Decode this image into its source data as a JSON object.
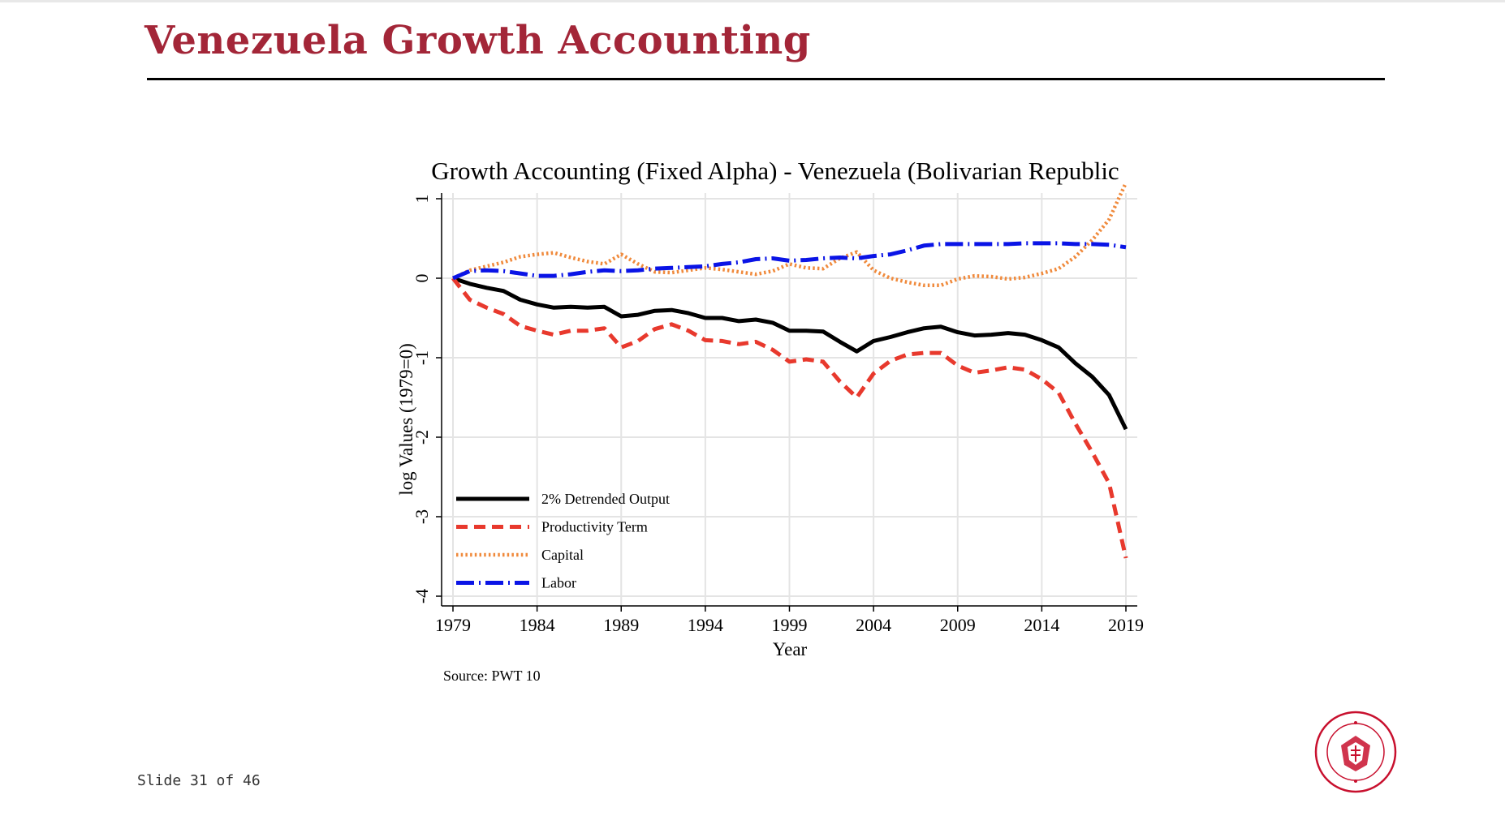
{
  "slide": {
    "title": "Venezuela Growth Accounting",
    "footer": "Slide 31 of 46",
    "logo_text": "CARNEGIE MELLON UNIVERSITY PITTSBURGH PENNSYLVANIA 1900",
    "accent_color": "#a32638"
  },
  "chart_data": {
    "type": "line",
    "title": "Growth Accounting (Fixed Alpha) - Venezuela (Bolivarian Republic",
    "xlabel": "Year",
    "ylabel": "log Values (1979=0)",
    "source": "Source: PWT 10",
    "xlim": [
      1979,
      2019
    ],
    "ylim": [
      -4,
      1
    ],
    "xticks": [
      1979,
      1984,
      1989,
      1994,
      1999,
      2004,
      2009,
      2014,
      2019
    ],
    "yticks": [
      -4,
      -3,
      -2,
      -1,
      0,
      1
    ],
    "grid": true,
    "legend_position": "bottom-left",
    "x": [
      1979,
      1980,
      1981,
      1982,
      1983,
      1984,
      1985,
      1986,
      1987,
      1988,
      1989,
      1990,
      1991,
      1992,
      1993,
      1994,
      1995,
      1996,
      1997,
      1998,
      1999,
      2000,
      2001,
      2002,
      2003,
      2004,
      2005,
      2006,
      2007,
      2008,
      2009,
      2010,
      2011,
      2012,
      2013,
      2014,
      2015,
      2016,
      2017,
      2018,
      2019
    ],
    "series": [
      {
        "name": "2% Detrended Output",
        "color": "#000000",
        "style": "solid",
        "values": [
          0,
          -0.07,
          -0.12,
          -0.16,
          -0.27,
          -0.33,
          -0.37,
          -0.36,
          -0.37,
          -0.36,
          -0.48,
          -0.46,
          -0.41,
          -0.4,
          -0.44,
          -0.5,
          -0.5,
          -0.54,
          -0.52,
          -0.56,
          -0.66,
          -0.66,
          -0.67,
          -0.8,
          -0.92,
          -0.79,
          -0.74,
          -0.68,
          -0.63,
          -0.61,
          -0.68,
          -0.72,
          -0.71,
          -0.69,
          -0.71,
          -0.78,
          -0.87,
          -1.07,
          -1.24,
          -1.47,
          -1.9
        ]
      },
      {
        "name": "Productivity Term",
        "color": "#e8392d",
        "style": "dash",
        "values": [
          0,
          -0.27,
          -0.37,
          -0.45,
          -0.6,
          -0.66,
          -0.71,
          -0.66,
          -0.66,
          -0.63,
          -0.87,
          -0.79,
          -0.64,
          -0.58,
          -0.66,
          -0.78,
          -0.79,
          -0.83,
          -0.8,
          -0.9,
          -1.05,
          -1.02,
          -1.05,
          -1.3,
          -1.5,
          -1.2,
          -1.04,
          -0.96,
          -0.94,
          -0.94,
          -1.1,
          -1.19,
          -1.16,
          -1.12,
          -1.15,
          -1.27,
          -1.44,
          -1.83,
          -2.19,
          -2.58,
          -3.52
        ]
      },
      {
        "name": "Capital",
        "color": "#f08a3c",
        "style": "dot",
        "values": [
          0,
          0.1,
          0.15,
          0.2,
          0.27,
          0.3,
          0.32,
          0.26,
          0.21,
          0.18,
          0.3,
          0.18,
          0.08,
          0.07,
          0.1,
          0.13,
          0.11,
          0.08,
          0.05,
          0.09,
          0.18,
          0.13,
          0.12,
          0.25,
          0.33,
          0.1,
          0.0,
          -0.05,
          -0.09,
          -0.09,
          -0.01,
          0.03,
          0.02,
          -0.01,
          0.01,
          0.06,
          0.12,
          0.27,
          0.48,
          0.74,
          1.2
        ]
      },
      {
        "name": "Labor",
        "color": "#0a14e6",
        "style": "dashdot",
        "values": [
          0,
          0.09,
          0.1,
          0.09,
          0.06,
          0.03,
          0.03,
          0.05,
          0.08,
          0.1,
          0.09,
          0.1,
          0.12,
          0.13,
          0.14,
          0.15,
          0.18,
          0.2,
          0.24,
          0.25,
          0.22,
          0.23,
          0.25,
          0.26,
          0.25,
          0.28,
          0.3,
          0.35,
          0.41,
          0.43,
          0.43,
          0.43,
          0.43,
          0.43,
          0.44,
          0.44,
          0.44,
          0.43,
          0.43,
          0.42,
          0.39
        ]
      }
    ]
  }
}
